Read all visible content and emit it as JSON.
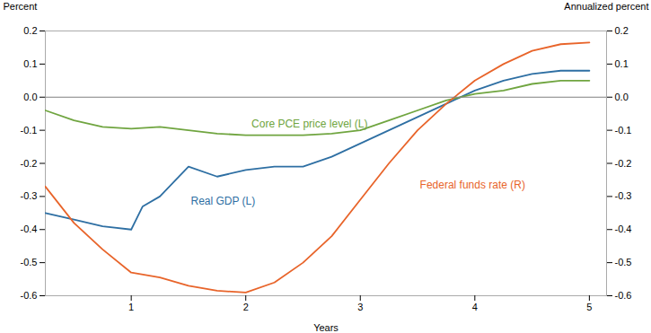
{
  "chart_data": {
    "type": "line",
    "xlabel": "Years",
    "ylabel": "Percent",
    "y2label": "Annualized percent",
    "xlim": [
      0.25,
      5.15
    ],
    "xticks": [
      1,
      2,
      3,
      4,
      5
    ],
    "ylim": [
      -0.6,
      0.2
    ],
    "yticks": [
      -0.6,
      -0.5,
      -0.4,
      -0.3,
      -0.2,
      -0.1,
      {
        "value": 0,
        "label": "0.0"
      },
      0.1,
      0.2
    ],
    "y2lim": [
      -0.6,
      0.2
    ],
    "y2ticks": [
      -0.6,
      -0.5,
      -0.4,
      -0.3,
      -0.2,
      -0.1,
      {
        "value": 0,
        "label": "0.0"
      },
      0.1,
      0.2
    ],
    "grid": false,
    "series": [
      {
        "name": "Real GDP (L)",
        "color": "#2e6fa3",
        "x": [
          0.25,
          0.5,
          0.75,
          1.0,
          1.1,
          1.25,
          1.5,
          1.75,
          2.0,
          2.25,
          2.5,
          2.75,
          3.0,
          3.25,
          3.5,
          3.75,
          4.0,
          4.25,
          4.5,
          4.75,
          5.0
        ],
        "values": [
          -0.35,
          -0.37,
          -0.39,
          -0.4,
          -0.33,
          -0.3,
          -0.21,
          -0.24,
          -0.22,
          -0.21,
          -0.21,
          -0.18,
          -0.14,
          -0.1,
          -0.06,
          -0.02,
          0.02,
          0.05,
          0.07,
          0.08,
          0.08
        ]
      },
      {
        "name": "Core PCE price level (L)",
        "color": "#70a540",
        "x": [
          0.25,
          0.5,
          0.75,
          1.0,
          1.25,
          1.5,
          1.75,
          2.0,
          2.25,
          2.5,
          2.75,
          3.0,
          3.25,
          3.5,
          3.75,
          4.0,
          4.25,
          4.5,
          4.75,
          5.0
        ],
        "values": [
          -0.04,
          -0.07,
          -0.09,
          -0.095,
          -0.09,
          -0.1,
          -0.11,
          -0.115,
          -0.115,
          -0.115,
          -0.11,
          -0.1,
          -0.07,
          -0.04,
          -0.01,
          0.01,
          0.02,
          0.04,
          0.05,
          0.05
        ]
      },
      {
        "name": "Federal funds rate (R)",
        "color": "#e8642a",
        "axis": "y2",
        "x": [
          0.25,
          0.5,
          0.75,
          1.0,
          1.25,
          1.5,
          1.75,
          2.0,
          2.25,
          2.5,
          2.75,
          3.0,
          3.25,
          3.5,
          3.75,
          4.0,
          4.25,
          4.5,
          4.75,
          5.0
        ],
        "values": [
          -0.27,
          -0.38,
          -0.46,
          -0.53,
          -0.545,
          -0.57,
          -0.585,
          -0.59,
          -0.56,
          -0.5,
          -0.42,
          -0.31,
          -0.2,
          -0.1,
          -0.02,
          0.05,
          0.1,
          0.14,
          0.16,
          0.165
        ]
      }
    ]
  }
}
